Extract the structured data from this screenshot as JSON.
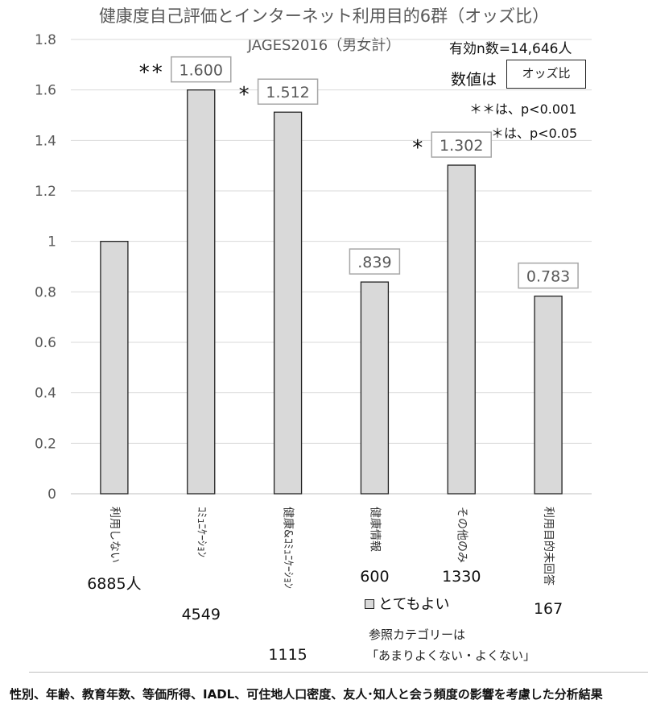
{
  "chart_data": {
    "type": "bar",
    "title": "健康度自己評価とインターネット利用目的6群（オッズ比）",
    "subtitle": "JAGES2016（男女計）",
    "categories": [
      "利用しない",
      "ｺﾐｭﾆｹｰｼｮﾝ",
      "健康&ｺﾐｭﾆｹｰｼｮﾝ",
      "健康情報",
      "その他のみ",
      "利用目的未回答"
    ],
    "values": [
      1.0,
      1.6,
      1.512,
      0.839,
      1.302,
      0.783
    ],
    "data_labels": [
      "",
      "1.600",
      "1.512",
      ".839",
      "1.302",
      "0.783"
    ],
    "significance": [
      "",
      "**",
      "*",
      "",
      "*",
      ""
    ],
    "counts": [
      "6885人",
      "4549",
      "1115",
      "600",
      "1330",
      "167"
    ],
    "ylim": [
      0,
      1.8
    ],
    "yticks": [
      "0",
      "0.2",
      "0.4",
      "0.6",
      "0.8",
      "1",
      "1.2",
      "1.4",
      "1.6",
      "1.8"
    ],
    "grid": true,
    "legend": {
      "series_name": "とてもよい",
      "placement": "bottom-right"
    },
    "series": [
      {
        "name": "とてもよい",
        "values": [
          1.0,
          1.6,
          1.512,
          0.839,
          1.302,
          0.783
        ]
      }
    ]
  },
  "notes": {
    "sample_size": "有効n数=14,646人",
    "value_key_label": "数値は",
    "value_key_box": "オッズ比",
    "sig_001": "＊＊は、p<0.001",
    "sig_05": "＊は、p<0.05",
    "reference_line1": "参照カテゴリーは",
    "reference_line2": "「あまりよくない・よくない」"
  },
  "footer": "性別、年齢、教育年数、等価所得、IADL、可住地人口密度、友人･知人と会う頻度の影響を考慮した分析結果",
  "colors": {
    "bar_fill": "#d9d9d9",
    "bar_stroke": "#222222",
    "grid": "#d9d9d9",
    "label_box": "#a6a6a6",
    "text": "#595959"
  }
}
